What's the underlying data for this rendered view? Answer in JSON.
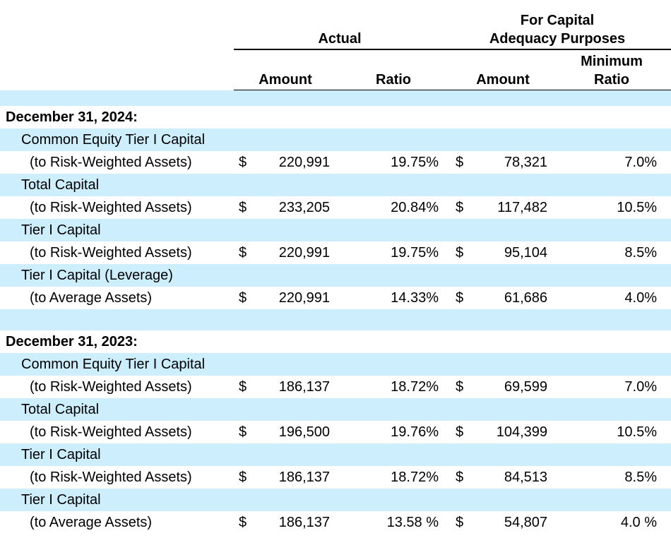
{
  "header": {
    "actual": "Actual",
    "capital": [
      "For Capital",
      "Adequacy Purposes"
    ],
    "columns": [
      "Amount",
      "Ratio",
      "Amount",
      [
        "Minimum",
        "Ratio"
      ]
    ]
  },
  "sections": [
    {
      "title": "December 31, 2024:",
      "items": [
        {
          "label": "Common Equity Tier I Capital",
          "basis": "(to Risk-Weighted Assets)",
          "cells": [
            "$",
            "220,991",
            "19.75%",
            "$",
            "78,321",
            "7.0%"
          ]
        },
        {
          "label": "Total Capital",
          "basis": "(to Risk-Weighted Assets)",
          "cells": [
            "$",
            "233,205",
            "20.84%",
            "$",
            "117,482",
            "10.5%"
          ]
        },
        {
          "label": "Tier I Capital",
          "basis": "(to Risk-Weighted Assets)",
          "cells": [
            "$",
            "220,991",
            "19.75%",
            "$",
            "95,104",
            "8.5%"
          ]
        },
        {
          "label": "Tier I Capital (Leverage)",
          "basis": "(to Average Assets)",
          "cells": [
            "$",
            "220,991",
            "14.33%",
            "$",
            "61,686",
            "4.0%"
          ]
        }
      ]
    },
    {
      "title": "December 31, 2023:",
      "items": [
        {
          "label": "Common Equity Tier I Capital",
          "basis": "(to Risk-Weighted Assets)",
          "cells": [
            "$",
            "186,137",
            "18.72%",
            "$",
            "69,599",
            "7.0%"
          ]
        },
        {
          "label": "Total Capital",
          "basis": "(to Risk-Weighted Assets)",
          "cells": [
            "$",
            "196,500",
            "19.76%",
            "$",
            "104,399",
            "10.5%"
          ]
        },
        {
          "label": "Tier I Capital",
          "basis": "(to Risk-Weighted Assets)",
          "cells": [
            "$",
            "186,137",
            "18.72%",
            "$",
            "84,513",
            "8.5%"
          ]
        },
        {
          "label": "Tier I Capital",
          "basis": "(to Average Assets)",
          "cells": [
            "$",
            "186,137",
            "13.58 %",
            "$",
            "54,807",
            "4.0 %"
          ]
        }
      ]
    }
  ]
}
